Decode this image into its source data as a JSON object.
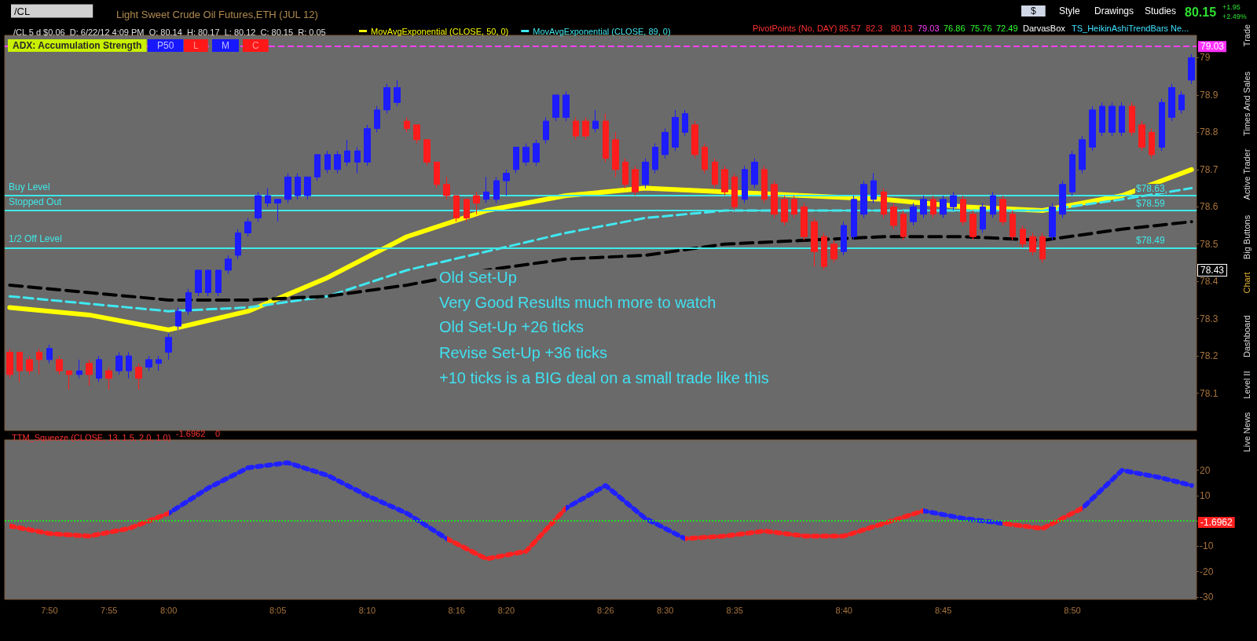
{
  "chart_data": [
    {
      "type": "candlestick",
      "title": "Light Sweet Crude Oil Futures,ETH (JUL 12)",
      "subtitle": "/CL 5 d $0.06  D: 6/22/12 4:09 PM  O: 80.14  H: 80.17  L: 80.12  C: 80.15  R: 0.05",
      "categories": [
        null,
        null,
        null,
        null,
        null,
        null,
        null,
        null,
        null,
        null,
        null,
        null,
        null,
        null,
        null,
        null,
        null,
        null,
        null,
        null,
        null,
        null,
        null,
        null,
        null,
        null,
        null,
        null,
        null,
        null,
        null,
        null,
        null,
        null,
        null,
        null,
        null,
        null,
        null,
        null,
        null,
        null,
        null,
        null,
        null,
        null,
        null,
        null,
        null,
        null,
        null,
        null,
        null,
        null,
        null,
        null,
        null,
        null,
        null,
        null,
        null,
        null,
        null,
        null,
        null,
        null,
        null,
        null,
        null,
        null,
        null,
        null,
        null,
        null,
        null,
        null,
        null,
        null,
        null,
        null,
        null,
        null,
        null,
        null,
        null,
        null,
        null,
        null,
        null,
        null,
        null,
        null,
        null,
        null,
        null,
        null,
        null,
        null,
        null,
        null,
        null,
        null,
        null,
        null,
        null,
        null,
        null,
        null,
        null,
        null,
        null,
        null,
        null,
        null,
        null,
        null,
        null,
        null,
        null,
        null
      ],
      "ohlc": [
        [
          78.21,
          78.22,
          78.14,
          78.15
        ],
        [
          78.21,
          78.21,
          78.13,
          78.16
        ],
        [
          78.19,
          78.2,
          78.15,
          78.16
        ],
        [
          78.21,
          78.22,
          78.15,
          78.19
        ],
        [
          78.19,
          78.23,
          78.18,
          78.22
        ],
        [
          78.19,
          78.2,
          78.15,
          78.16
        ],
        [
          78.16,
          78.16,
          78.11,
          78.15
        ],
        [
          78.15,
          78.19,
          78.14,
          78.16
        ],
        [
          78.18,
          78.19,
          78.12,
          78.15
        ],
        [
          78.14,
          78.2,
          78.13,
          78.19
        ],
        [
          78.16,
          78.17,
          78.11,
          78.14
        ],
        [
          78.16,
          78.21,
          78.15,
          78.2
        ],
        [
          78.16,
          78.21,
          78.14,
          78.2
        ],
        [
          78.17,
          78.18,
          78.11,
          78.14
        ],
        [
          78.17,
          78.2,
          78.16,
          78.19
        ],
        [
          78.18,
          78.2,
          78.16,
          78.19
        ],
        [
          78.21,
          78.26,
          78.19,
          78.25
        ],
        [
          78.28,
          78.33,
          78.27,
          78.32
        ],
        [
          78.32,
          78.38,
          78.31,
          78.37
        ],
        [
          78.37,
          78.43,
          78.36,
          78.43
        ],
        [
          78.37,
          78.43,
          78.36,
          78.43
        ],
        [
          78.37,
          78.43,
          78.36,
          78.43
        ],
        [
          78.43,
          78.47,
          78.42,
          78.46
        ],
        [
          78.47,
          78.54,
          78.46,
          78.53
        ],
        [
          78.53,
          78.57,
          78.52,
          78.56
        ],
        [
          78.57,
          78.64,
          78.56,
          78.63
        ],
        [
          78.61,
          78.65,
          78.6,
          78.63
        ],
        [
          78.61,
          78.62,
          78.56,
          78.62
        ],
        [
          78.62,
          78.69,
          78.61,
          78.68
        ],
        [
          78.63,
          78.69,
          78.62,
          78.68
        ],
        [
          78.63,
          78.68,
          78.62,
          78.68
        ],
        [
          78.68,
          78.74,
          78.67,
          78.74
        ],
        [
          78.7,
          78.75,
          78.69,
          78.74
        ],
        [
          78.7,
          78.75,
          78.69,
          78.74
        ],
        [
          78.72,
          78.78,
          78.71,
          78.75
        ],
        [
          78.72,
          78.76,
          78.69,
          78.75
        ],
        [
          78.72,
          78.82,
          78.71,
          78.81
        ],
        [
          78.81,
          78.87,
          78.8,
          78.86
        ],
        [
          78.86,
          78.93,
          78.85,
          78.92
        ],
        [
          78.88,
          78.94,
          78.87,
          78.92
        ],
        [
          78.83,
          78.84,
          78.8,
          78.81
        ],
        [
          78.82,
          78.82,
          78.77,
          78.78
        ],
        [
          78.78,
          78.78,
          78.71,
          78.72
        ],
        [
          78.72,
          78.72,
          78.65,
          78.66
        ],
        [
          78.66,
          78.68,
          78.62,
          78.63
        ],
        [
          78.63,
          78.63,
          78.56,
          78.57
        ],
        [
          78.62,
          78.62,
          78.56,
          78.57
        ],
        [
          78.63,
          78.64,
          78.58,
          78.61
        ],
        [
          78.62,
          78.68,
          78.61,
          78.64
        ],
        [
          78.62,
          78.68,
          78.61,
          78.67
        ],
        [
          78.67,
          78.7,
          78.63,
          78.69
        ],
        [
          78.7,
          78.76,
          78.69,
          78.76
        ],
        [
          78.72,
          78.77,
          78.71,
          78.76
        ],
        [
          78.72,
          78.78,
          78.71,
          78.77
        ],
        [
          78.78,
          78.84,
          78.77,
          78.83
        ],
        [
          78.84,
          78.9,
          78.83,
          78.9
        ],
        [
          78.84,
          78.91,
          78.83,
          78.9
        ],
        [
          78.83,
          78.84,
          78.78,
          78.79
        ],
        [
          78.83,
          78.84,
          78.78,
          78.79
        ],
        [
          78.81,
          78.86,
          78.8,
          78.83
        ],
        [
          78.83,
          78.85,
          78.72,
          78.73
        ],
        [
          78.78,
          78.8,
          78.68,
          78.7
        ],
        [
          78.72,
          78.73,
          78.65,
          78.66
        ],
        [
          78.7,
          78.71,
          78.63,
          78.64
        ],
        [
          78.66,
          78.73,
          78.65,
          78.72
        ],
        [
          78.7,
          78.77,
          78.69,
          78.76
        ],
        [
          78.74,
          78.81,
          78.73,
          78.8
        ],
        [
          78.76,
          78.86,
          78.75,
          78.84
        ],
        [
          78.8,
          78.86,
          78.79,
          78.85
        ],
        [
          78.82,
          78.83,
          78.73,
          78.74
        ],
        [
          78.76,
          78.77,
          78.69,
          78.7
        ],
        [
          78.72,
          78.73,
          78.65,
          78.66
        ],
        [
          78.7,
          78.71,
          78.63,
          78.64
        ],
        [
          78.68,
          78.69,
          78.59,
          78.6
        ],
        [
          78.62,
          78.71,
          78.61,
          78.7
        ],
        [
          78.66,
          78.73,
          78.65,
          78.72
        ],
        [
          78.7,
          78.71,
          78.61,
          78.62
        ],
        [
          78.66,
          78.67,
          78.57,
          78.58
        ],
        [
          78.62,
          78.63,
          78.55,
          78.56
        ],
        [
          78.62,
          78.63,
          78.57,
          78.58
        ],
        [
          78.6,
          78.61,
          78.51,
          78.52
        ],
        [
          78.56,
          78.57,
          78.44,
          78.48
        ],
        [
          78.52,
          78.53,
          78.43,
          78.44
        ],
        [
          78.5,
          78.51,
          78.45,
          78.46
        ],
        [
          78.48,
          78.56,
          78.47,
          78.55
        ],
        [
          78.52,
          78.63,
          78.51,
          78.62
        ],
        [
          78.58,
          78.67,
          78.57,
          78.66
        ],
        [
          78.62,
          78.69,
          78.61,
          78.67
        ],
        [
          78.64,
          78.65,
          78.57,
          78.58
        ],
        [
          78.6,
          78.61,
          78.54,
          78.55
        ],
        [
          78.58,
          78.59,
          78.51,
          78.52
        ],
        [
          78.56,
          78.61,
          78.55,
          78.6
        ],
        [
          78.58,
          78.63,
          78.57,
          78.62
        ],
        [
          78.62,
          78.63,
          78.57,
          78.58
        ],
        [
          78.58,
          78.63,
          78.57,
          78.62
        ],
        [
          78.6,
          78.64,
          78.59,
          78.63
        ],
        [
          78.62,
          78.63,
          78.55,
          78.56
        ],
        [
          78.58,
          78.59,
          78.51,
          78.52
        ],
        [
          78.54,
          78.61,
          78.53,
          78.6
        ],
        [
          78.58,
          78.64,
          78.57,
          78.63
        ],
        [
          78.62,
          78.63,
          78.55,
          78.56
        ],
        [
          78.58,
          78.59,
          78.51,
          78.52
        ],
        [
          78.54,
          78.55,
          78.49,
          78.5
        ],
        [
          78.52,
          78.53,
          78.47,
          78.48
        ],
        [
          78.52,
          78.53,
          78.45,
          78.46
        ],
        [
          78.52,
          78.61,
          78.51,
          78.6
        ],
        [
          78.58,
          78.67,
          78.57,
          78.66
        ],
        [
          78.64,
          78.75,
          78.63,
          78.74
        ],
        [
          78.7,
          78.79,
          78.69,
          78.78
        ],
        [
          78.76,
          78.87,
          78.75,
          78.86
        ],
        [
          78.8,
          78.88,
          78.79,
          78.87
        ],
        [
          78.8,
          78.88,
          78.79,
          78.87
        ],
        [
          78.8,
          78.88,
          78.79,
          78.87
        ],
        [
          78.87,
          78.88,
          78.79,
          78.8
        ],
        [
          78.82,
          78.83,
          78.75,
          78.76
        ],
        [
          78.8,
          78.81,
          78.73,
          78.74
        ],
        [
          78.76,
          78.89,
          78.75,
          78.88
        ],
        [
          78.84,
          78.93,
          78.83,
          78.92
        ],
        [
          78.86,
          78.91,
          78.85,
          78.9
        ],
        [
          78.94,
          79.01,
          78.93,
          79.0
        ]
      ],
      "colors": [
        "#ff1c1c",
        "#ff1c1c",
        "#ff1c1c",
        "#ff1c1c",
        "#1c1cff",
        "#ff1c1c",
        "#ff1c1c",
        "#1c1cff",
        "#ff1c1c",
        "#1c1cff",
        "#ff1c1c",
        "#1c1cff",
        "#1c1cff",
        "#ff1c1c",
        "#1c1cff",
        "#1c1cff",
        "#1c1cff",
        "#1c1cff",
        "#1c1cff",
        "#1c1cff",
        "#1c1cff",
        "#1c1cff",
        "#1c1cff",
        "#1c1cff",
        "#1c1cff",
        "#1c1cff",
        "#1c1cff",
        "#1c1cff",
        "#1c1cff",
        "#1c1cff",
        "#1c1cff",
        "#1c1cff",
        "#1c1cff",
        "#1c1cff",
        "#1c1cff",
        "#1c1cff",
        "#1c1cff",
        "#1c1cff",
        "#1c1cff",
        "#1c1cff",
        "#ff1c1c",
        "#ff1c1c",
        "#ff1c1c",
        "#ff1c1c",
        "#ff1c1c",
        "#ff1c1c",
        "#ff1c1c",
        "#ff1c1c",
        "#1c1cff",
        "#1c1cff",
        "#1c1cff",
        "#1c1cff",
        "#1c1cff",
        "#1c1cff",
        "#1c1cff",
        "#1c1cff",
        "#1c1cff",
        "#ff1c1c",
        "#ff1c1c",
        "#1c1cff",
        "#ff1c1c",
        "#ff1c1c",
        "#ff1c1c",
        "#ff1c1c",
        "#1c1cff",
        "#1c1cff",
        "#1c1cff",
        "#1c1cff",
        "#1c1cff",
        "#ff1c1c",
        "#ff1c1c",
        "#ff1c1c",
        "#ff1c1c",
        "#ff1c1c",
        "#1c1cff",
        "#1c1cff",
        "#ff1c1c",
        "#ff1c1c",
        "#ff1c1c",
        "#ff1c1c",
        "#ff1c1c",
        "#ff1c1c",
        "#ff1c1c",
        "#ff1c1c",
        "#1c1cff",
        "#1c1cff",
        "#1c1cff",
        "#1c1cff",
        "#ff1c1c",
        "#ff1c1c",
        "#ff1c1c",
        "#1c1cff",
        "#1c1cff",
        "#ff1c1c",
        "#1c1cff",
        "#1c1cff",
        "#ff1c1c",
        "#ff1c1c",
        "#1c1cff",
        "#1c1cff",
        "#ff1c1c",
        "#ff1c1c",
        "#ff1c1c",
        "#ff1c1c",
        "#ff1c1c",
        "#1c1cff",
        "#1c1cff",
        "#1c1cff",
        "#1c1cff",
        "#1c1cff",
        "#1c1cff",
        "#1c1cff",
        "#1c1cff",
        "#ff1c1c",
        "#ff1c1c",
        "#ff1c1c",
        "#1c1cff",
        "#1c1cff",
        "#1c1cff",
        "#1c1cff"
      ],
      "series": [
        {
          "type": "line",
          "name": "MovAvgExponential (CLOSE, 50, 0)",
          "color": "#ffff00",
          "line_style": "solid",
          "values": [
            78.33,
            null,
            null,
            null,
            null,
            null,
            null,
            null,
            78.31,
            null,
            null,
            null,
            null,
            null,
            null,
            null,
            78.27,
            null,
            null,
            null,
            null,
            null,
            null,
            null,
            78.32,
            null,
            null,
            null,
            null,
            null,
            null,
            null,
            78.41,
            null,
            null,
            null,
            null,
            null,
            null,
            null,
            78.52,
            null,
            null,
            null,
            null,
            null,
            null,
            null,
            78.59,
            null,
            null,
            null,
            null,
            null,
            null,
            null,
            78.63,
            null,
            null,
            null,
            null,
            null,
            null,
            null,
            78.65,
            null,
            null,
            null,
            null,
            null,
            null,
            null,
            null,
            null,
            null,
            null,
            null,
            null,
            null,
            null,
            78.63,
            null,
            null,
            null,
            null,
            null,
            null,
            null,
            78.62,
            null,
            null,
            null,
            null,
            null,
            null,
            null,
            78.6,
            null,
            null,
            null,
            null,
            null,
            null,
            null,
            78.59,
            null,
            null,
            null,
            null,
            null,
            null,
            null,
            78.63,
            null,
            null,
            null,
            null,
            null,
            null,
            78.7
          ]
        },
        {
          "type": "line",
          "name": "MovAvgExponential (CLOSE, 89, 0)",
          "color": "#40e8f0",
          "line_style": "dashed",
          "values": [
            78.36,
            null,
            null,
            null,
            null,
            null,
            null,
            null,
            78.34,
            null,
            null,
            null,
            null,
            null,
            null,
            null,
            78.32,
            null,
            null,
            null,
            null,
            null,
            null,
            null,
            78.33,
            null,
            null,
            null,
            null,
            null,
            null,
            null,
            78.36,
            null,
            null,
            null,
            null,
            null,
            null,
            null,
            78.43,
            null,
            null,
            null,
            null,
            null,
            null,
            null,
            78.48,
            null,
            null,
            null,
            null,
            null,
            null,
            null,
            78.53,
            null,
            null,
            null,
            null,
            null,
            null,
            null,
            78.57,
            null,
            null,
            null,
            null,
            null,
            null,
            null,
            78.59,
            null,
            null,
            null,
            null,
            null,
            null,
            null,
            null,
            null,
            null,
            null,
            null,
            null,
            null,
            null,
            78.59,
            null,
            null,
            null,
            null,
            null,
            null,
            null,
            78.59,
            null,
            null,
            null,
            null,
            null,
            null,
            null,
            78.59,
            null,
            null,
            null,
            null,
            null,
            null,
            null,
            78.62,
            null,
            null,
            null,
            null,
            null,
            null,
            78.65
          ]
        },
        {
          "type": "line",
          "color": "#000000",
          "line_style": "dashed",
          "values": [
            78.39,
            null,
            null,
            null,
            null,
            null,
            null,
            null,
            78.37,
            null,
            null,
            null,
            null,
            null,
            null,
            null,
            78.35,
            null,
            null,
            null,
            null,
            null,
            null,
            null,
            78.35,
            null,
            null,
            null,
            null,
            null,
            null,
            null,
            78.36,
            null,
            null,
            null,
            null,
            null,
            null,
            null,
            78.39,
            null,
            null,
            null,
            null,
            null,
            null,
            null,
            78.43,
            null,
            null,
            null,
            null,
            null,
            null,
            null,
            78.46,
            null,
            null,
            null,
            null,
            null,
            null,
            null,
            78.47,
            null,
            null,
            null,
            null,
            null,
            null,
            null,
            78.5,
            null,
            null,
            null,
            null,
            null,
            null,
            null,
            78.51,
            null,
            null,
            null,
            null,
            null,
            null,
            null,
            78.52,
            null,
            null,
            null,
            null,
            null,
            null,
            null,
            78.52,
            null,
            null,
            null,
            null,
            null,
            null,
            null,
            78.51,
            null,
            null,
            null,
            null,
            null,
            null,
            null,
            78.54,
            null,
            null,
            null,
            null,
            null,
            null,
            78.56
          ]
        }
      ],
      "ylim": [
        78.0,
        79.06
      ],
      "yticks": [
        78.1,
        78.2,
        78.3,
        78.4,
        78.5,
        78.6,
        78.7,
        78.8,
        78.9,
        79
      ],
      "tick_labels": "y",
      "grid": false,
      "legend": "top left",
      "marker": "none",
      "ref_lines": [
        {
          "axis": "y",
          "value": 78.63,
          "label": "Buy Level",
          "color": "#40e8e8",
          "line_style": "solid"
        },
        {
          "axis": "y",
          "value": 78.59,
          "label": "Stopped Out",
          "color": "#40e8e8",
          "line_style": "solid"
        },
        {
          "axis": "y",
          "value": 78.49,
          "label": "1/2 Off Level",
          "color": "#40e8e8",
          "line_style": "solid"
        },
        {
          "axis": "y",
          "value": 79.03,
          "color": "#ff40ff",
          "line_style": "dashed"
        }
      ],
      "annotations": [
        "/CL",
        "ADX: Accumulation Strength",
        "P50",
        "L",
        "M",
        "C",
        "PivotPoints (No, DAY)",
        "85.57",
        "82.3",
        "80.13",
        "79.03",
        "76.86",
        "75.76",
        "72.49",
        "DarvasBox",
        "TS_HeikinAshiTrendBars",
        "Ne...",
        "$",
        "Style",
        "Drawings",
        "Studies",
        "80.15",
        "+1.95",
        "+2.49%",
        "Trade",
        "Times And Sales",
        "Active Trader",
        "Big Buttons",
        "Chart",
        "Dashboard",
        "Level II",
        "Live News",
        "Old Set-Up",
        "Very Good Results much more to watch",
        "Old Set-Up +26 ticks",
        "Revise Set-Up +36 ticks",
        "+10 ticks is a BIG deal on a small trade like this",
        {
          "text": "$78.63",
          "y": 78.63
        },
        {
          "text": "$78.59",
          "y": 78.59
        },
        {
          "text": "$78.49",
          "y": 78.49
        },
        {
          "text": "79.03",
          "y": 79.03
        },
        {
          "text": "78.43",
          "y": 78.43
        }
      ]
    },
    {
      "type": "line",
      "title": "TTM_Squeeze (CLOSE, 13, 1.5, 2.0, 1.0)",
      "categories": [
        null,
        null,
        null,
        null,
        "7:50",
        null,
        null,
        null,
        null,
        null,
        "7:55",
        null,
        null,
        null,
        null,
        null,
        "8:00",
        null,
        null,
        null,
        null,
        null,
        null,
        null,
        null,
        null,
        null,
        "8:05",
        null,
        null,
        null,
        null,
        null,
        null,
        null,
        null,
        "8:10",
        null,
        null,
        null,
        null,
        null,
        null,
        null,
        null,
        "8:16",
        null,
        null,
        null,
        null,
        "8:20",
        null,
        null,
        null,
        null,
        null,
        null,
        null,
        null,
        null,
        "8:26",
        null,
        null,
        null,
        null,
        null,
        "8:30",
        null,
        null,
        null,
        null,
        null,
        null,
        "8:35",
        null,
        null,
        null,
        null,
        null,
        null,
        null,
        null,
        null,
        null,
        "8:40",
        null,
        null,
        null,
        null,
        null,
        null,
        null,
        null,
        null,
        "8:45",
        null,
        null,
        null,
        null,
        null,
        null,
        null,
        null,
        null,
        null,
        null,
        null,
        "8:50",
        null,
        null,
        null,
        null,
        null,
        null,
        null,
        null,
        null,
        null,
        null,
        null
      ],
      "series": [
        {
          "line_style": "dotted",
          "values": [
            -2,
            null,
            null,
            null,
            -5,
            null,
            null,
            null,
            -6,
            null,
            null,
            null,
            -3,
            null,
            null,
            null,
            3,
            null,
            null,
            null,
            13,
            null,
            null,
            null,
            21,
            null,
            null,
            null,
            23,
            null,
            null,
            null,
            18,
            null,
            null,
            null,
            10,
            null,
            null,
            null,
            3,
            null,
            null,
            null,
            -7,
            null,
            null,
            null,
            -15,
            null,
            null,
            null,
            -12,
            null,
            null,
            null,
            5,
            null,
            null,
            null,
            14,
            null,
            null,
            null,
            1,
            null,
            null,
            null,
            -7,
            null,
            null,
            null,
            -6,
            null,
            null,
            null,
            -4,
            null,
            null,
            null,
            -6,
            null,
            null,
            null,
            -6,
            null,
            null,
            null,
            -1,
            null,
            null,
            null,
            4,
            null,
            null,
            null,
            1,
            null,
            null,
            null,
            -1,
            null,
            null,
            null,
            -3,
            null,
            null,
            null,
            5,
            null,
            null,
            null,
            20,
            null,
            null,
            null,
            17,
            null,
            null,
            14
          ],
          "colors": [
            "#ff2020",
            null,
            null,
            null,
            "#ff2020",
            null,
            null,
            null,
            "#ff2020",
            null,
            null,
            null,
            "#ff2020",
            null,
            null,
            null,
            "#2020ff",
            null,
            null,
            null,
            "#2020ff",
            null,
            null,
            null,
            "#2020ff",
            null,
            null,
            null,
            "#2020ff",
            null,
            null,
            null,
            "#2020ff",
            null,
            null,
            null,
            "#2020ff",
            null,
            null,
            null,
            "#2020ff",
            null,
            null,
            null,
            "#ff2020",
            null,
            null,
            null,
            "#ff2020",
            null,
            null,
            null,
            "#ff2020",
            null,
            null,
            null,
            "#2020ff",
            null,
            null,
            null,
            "#2020ff",
            null,
            null,
            null,
            "#2020ff",
            null,
            null,
            null,
            "#ff2020",
            null,
            null,
            null,
            "#ff2020",
            null,
            null,
            null,
            "#ff2020",
            null,
            null,
            null,
            "#ff2020",
            null,
            null,
            null,
            "#ff2020",
            null,
            null,
            null,
            "#ff2020",
            null,
            null,
            null,
            "#2020ff",
            null,
            null,
            null,
            "#2020ff",
            null,
            null,
            null,
            "#ff2020",
            null,
            null,
            null,
            "#ff2020",
            null,
            null,
            null,
            "#2020ff",
            null,
            null,
            null,
            "#2020ff",
            null,
            null,
            null,
            "#2020ff",
            null,
            null,
            "#2020ff"
          ]
        }
      ],
      "ylim": [
        -31,
        32
      ],
      "yticks": [
        -30,
        -20,
        -10,
        {
          "value": 0,
          "label": null
        },
        10,
        20
      ],
      "grid": false,
      "marker": "none",
      "ref_lines": [
        {
          "axis": "y",
          "value": 0,
          "color": "#20e020",
          "line_style": "dotted"
        }
      ],
      "annotations": [
        "-1.6962",
        "0",
        "-1.6962"
      ]
    }
  ]
}
